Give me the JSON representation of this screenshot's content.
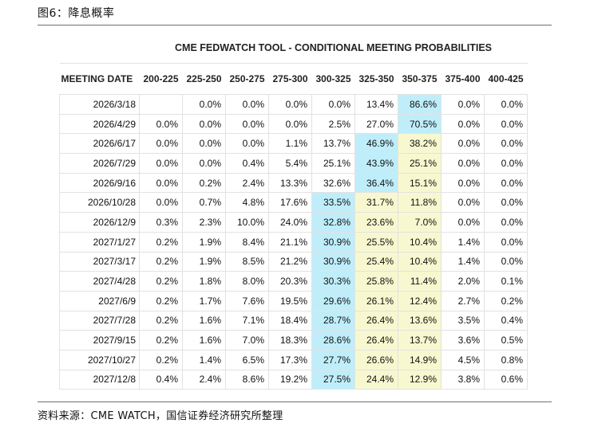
{
  "figure_label": "图6：降息概率",
  "source": "资料来源：CME WATCH，国信证券经济研究所整理",
  "table": {
    "title": "CME FEDWATCH TOOL - CONDITIONAL MEETING PROBABILITIES",
    "headers": [
      "MEETING DATE",
      "200-225",
      "225-250",
      "250-275",
      "275-300",
      "300-325",
      "325-350",
      "350-375",
      "375-400",
      "400-425"
    ],
    "colors": {
      "blue": "#bfeefa",
      "yellow": "#f8f8d0"
    },
    "rows": [
      {
        "cells": [
          "2026/3/18",
          "",
          "0.0%",
          "0.0%",
          "0.0%",
          "0.0%",
          "13.4%",
          "86.6%",
          "0.0%",
          "0.0%"
        ],
        "blue": [
          7
        ],
        "yellow": []
      },
      {
        "cells": [
          "2026/4/29",
          "0.0%",
          "0.0%",
          "0.0%",
          "0.0%",
          "2.5%",
          "27.0%",
          "70.5%",
          "0.0%",
          "0.0%"
        ],
        "blue": [
          7
        ],
        "yellow": []
      },
      {
        "cells": [
          "2026/6/17",
          "0.0%",
          "0.0%",
          "0.0%",
          "1.1%",
          "13.7%",
          "46.9%",
          "38.2%",
          "0.0%",
          "0.0%"
        ],
        "blue": [
          6
        ],
        "yellow": [
          7
        ]
      },
      {
        "cells": [
          "2026/7/29",
          "0.0%",
          "0.0%",
          "0.4%",
          "5.4%",
          "25.1%",
          "43.9%",
          "25.1%",
          "0.0%",
          "0.0%"
        ],
        "blue": [
          6
        ],
        "yellow": [
          7
        ]
      },
      {
        "cells": [
          "2026/9/16",
          "0.0%",
          "0.2%",
          "2.4%",
          "13.3%",
          "32.6%",
          "36.4%",
          "15.1%",
          "0.0%",
          "0.0%"
        ],
        "blue": [
          6
        ],
        "yellow": [
          7
        ]
      },
      {
        "cells": [
          "2026/10/28",
          "0.0%",
          "0.7%",
          "4.8%",
          "17.6%",
          "33.5%",
          "31.7%",
          "11.8%",
          "0.0%",
          "0.0%"
        ],
        "blue": [
          5
        ],
        "yellow": [
          6,
          7
        ]
      },
      {
        "cells": [
          "2026/12/9",
          "0.3%",
          "2.3%",
          "10.0%",
          "24.0%",
          "32.8%",
          "23.6%",
          "7.0%",
          "0.0%",
          "0.0%"
        ],
        "blue": [
          5
        ],
        "yellow": [
          6,
          7
        ]
      },
      {
        "cells": [
          "2027/1/27",
          "0.2%",
          "1.9%",
          "8.4%",
          "21.1%",
          "30.9%",
          "25.5%",
          "10.4%",
          "1.4%",
          "0.0%"
        ],
        "blue": [
          5
        ],
        "yellow": [
          6,
          7
        ]
      },
      {
        "cells": [
          "2027/3/17",
          "0.2%",
          "1.9%",
          "8.5%",
          "21.2%",
          "30.9%",
          "25.4%",
          "10.4%",
          "1.4%",
          "0.0%"
        ],
        "blue": [
          5
        ],
        "yellow": [
          6,
          7
        ]
      },
      {
        "cells": [
          "2027/4/28",
          "0.2%",
          "1.8%",
          "8.0%",
          "20.3%",
          "30.3%",
          "25.8%",
          "11.4%",
          "2.0%",
          "0.1%"
        ],
        "blue": [
          5
        ],
        "yellow": [
          6,
          7
        ]
      },
      {
        "cells": [
          "2027/6/9",
          "0.2%",
          "1.7%",
          "7.6%",
          "19.5%",
          "29.6%",
          "26.1%",
          "12.4%",
          "2.7%",
          "0.2%"
        ],
        "blue": [
          5
        ],
        "yellow": [
          6,
          7
        ]
      },
      {
        "cells": [
          "2027/7/28",
          "0.2%",
          "1.6%",
          "7.1%",
          "18.4%",
          "28.7%",
          "26.4%",
          "13.6%",
          "3.5%",
          "0.4%"
        ],
        "blue": [
          5
        ],
        "yellow": [
          6,
          7
        ]
      },
      {
        "cells": [
          "2027/9/15",
          "0.2%",
          "1.6%",
          "7.0%",
          "18.3%",
          "28.6%",
          "26.4%",
          "13.7%",
          "3.6%",
          "0.5%"
        ],
        "blue": [
          5
        ],
        "yellow": [
          6,
          7
        ]
      },
      {
        "cells": [
          "2027/10/27",
          "0.2%",
          "1.4%",
          "6.5%",
          "17.3%",
          "27.7%",
          "26.6%",
          "14.9%",
          "4.5%",
          "0.8%"
        ],
        "blue": [
          5
        ],
        "yellow": [
          6,
          7
        ]
      },
      {
        "cells": [
          "2027/12/8",
          "0.4%",
          "2.4%",
          "8.6%",
          "19.2%",
          "27.5%",
          "24.4%",
          "12.9%",
          "3.8%",
          "0.6%"
        ],
        "blue": [
          5
        ],
        "yellow": [
          6,
          7
        ]
      }
    ]
  }
}
